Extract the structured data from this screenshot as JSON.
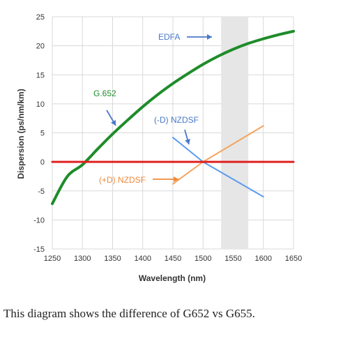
{
  "chart_data": {
    "type": "line",
    "xlabel": "Wavelength (nm)",
    "ylabel": "Dispersion (ps/nm/km)",
    "xlim": [
      1250,
      1650
    ],
    "ylim": [
      -15,
      25
    ],
    "xticks": [
      1250,
      1300,
      1350,
      1400,
      1450,
      1500,
      1550,
      1600,
      1650
    ],
    "yticks": [
      -15,
      -10,
      -5,
      0,
      5,
      10,
      15,
      20,
      25
    ],
    "grid": true,
    "shaded_band": {
      "label": "EDFA",
      "x": [
        1530,
        1575
      ],
      "color": "#e6e6e6"
    },
    "series": [
      {
        "name": "G.652",
        "color": "#1e8c2a",
        "points": [
          [
            1250,
            -7.2
          ],
          [
            1275,
            -2.5
          ],
          [
            1300,
            -0.5
          ],
          [
            1325,
            2.2
          ],
          [
            1350,
            4.8
          ],
          [
            1375,
            7.2
          ],
          [
            1400,
            9.5
          ],
          [
            1425,
            11.6
          ],
          [
            1450,
            13.5
          ],
          [
            1475,
            15.2
          ],
          [
            1500,
            16.8
          ],
          [
            1525,
            18.2
          ],
          [
            1550,
            19.4
          ],
          [
            1575,
            20.4
          ],
          [
            1600,
            21.2
          ],
          [
            1625,
            21.9
          ],
          [
            1650,
            22.5
          ]
        ]
      },
      {
        "name": "(-D) NZDSF",
        "color": "#5b9bef",
        "points": [
          [
            1450,
            4.2
          ],
          [
            1500,
            0.0
          ],
          [
            1600,
            -6.0
          ]
        ]
      },
      {
        "name": "(+D) NZDSF",
        "color": "#f4a460",
        "points": [
          [
            1450,
            -3.8
          ],
          [
            1500,
            0.0
          ],
          [
            1600,
            6.2
          ]
        ]
      },
      {
        "name": "",
        "color": "#e02020",
        "points": [
          [
            1250,
            0
          ],
          [
            1650,
            0
          ]
        ]
      }
    ],
    "annotations": [
      {
        "text": "EDFA",
        "color": "#4a78c8"
      },
      {
        "text": "G.652",
        "color": "#1e8c2a"
      },
      {
        "text": "(-D) NZDSF",
        "color": "#4a78c8"
      },
      {
        "text": "(+D) NZDSF",
        "color": "#f08a3a"
      }
    ]
  },
  "caption": "This diagram shows the difference of G652 vs G655."
}
